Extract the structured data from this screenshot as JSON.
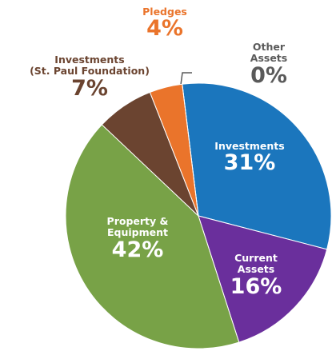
{
  "chart_data": {
    "type": "pie",
    "categories": [
      "Investments",
      "Current Assets",
      "Property &\nEquipment",
      "Investments\n(St. Paul Foundation)",
      "Pledges",
      "Other Assets"
    ],
    "values": [
      31,
      16,
      42,
      7,
      4,
      0
    ],
    "value_labels": [
      "31%",
      "16%",
      "42%",
      "7%",
      "4%",
      "0%"
    ],
    "colors": [
      "#1b76bd",
      "#6a2f9c",
      "#78a247",
      "#6b4430",
      "#ea742b",
      "#5a5a5a"
    ]
  }
}
